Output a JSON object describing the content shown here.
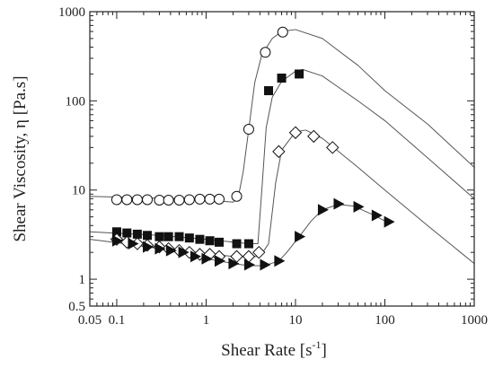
{
  "chart_data": {
    "type": "scatter",
    "title": "",
    "xlabel": {
      "main": "Shear Rate [s",
      "sup": "-1",
      "close": "]"
    },
    "ylabel": "Shear Viscosity, η [Pa.s]",
    "xscale": "log",
    "yscale": "log",
    "xlim": [
      0.05,
      1000
    ],
    "ylim": [
      0.5,
      1000
    ],
    "grid": false,
    "legend": "none",
    "x_ticks": [
      {
        "value": 0.05,
        "label": "0.05"
      },
      {
        "value": 0.1,
        "label": "0.1"
      },
      {
        "value": 1,
        "label": "1"
      },
      {
        "value": 10,
        "label": "10"
      },
      {
        "value": 100,
        "label": "100"
      },
      {
        "value": 1000,
        "label": "1000"
      }
    ],
    "y_ticks": [
      {
        "value": 0.5,
        "label": "0.5"
      },
      {
        "value": 1,
        "label": "1"
      },
      {
        "value": 10,
        "label": "10"
      },
      {
        "value": 100,
        "label": "100"
      },
      {
        "value": 1000,
        "label": "1000"
      }
    ],
    "colors": {
      "curve": "#555555",
      "marker": "#111111",
      "axis": "#222222"
    },
    "series": [
      {
        "marker": "open-circle",
        "points": [
          [
            0.1,
            7.8
          ],
          [
            0.13,
            7.8
          ],
          [
            0.17,
            7.8
          ],
          [
            0.22,
            7.8
          ],
          [
            0.3,
            7.7
          ],
          [
            0.38,
            7.7
          ],
          [
            0.5,
            7.7
          ],
          [
            0.65,
            7.8
          ],
          [
            0.85,
            7.9
          ],
          [
            1.1,
            7.9
          ],
          [
            1.4,
            7.9
          ],
          [
            2.2,
            8.5
          ],
          [
            3.0,
            48
          ],
          [
            4.6,
            350
          ],
          [
            7.2,
            590
          ]
        ],
        "curve": [
          [
            0.05,
            8.5
          ],
          [
            0.5,
            8.0
          ],
          [
            1.5,
            7.5
          ],
          [
            2.0,
            7.3
          ],
          [
            2.3,
            8.5
          ],
          [
            2.6,
            16
          ],
          [
            3.0,
            48
          ],
          [
            3.5,
            160
          ],
          [
            4.2,
            330
          ],
          [
            5.5,
            500
          ],
          [
            7.0,
            600
          ],
          [
            10,
            630
          ],
          [
            20,
            500
          ],
          [
            50,
            250
          ],
          [
            100,
            130
          ],
          [
            300,
            55
          ],
          [
            1000,
            18
          ]
        ]
      },
      {
        "marker": "filled-square",
        "points": [
          [
            0.1,
            3.4
          ],
          [
            0.13,
            3.3
          ],
          [
            0.17,
            3.2
          ],
          [
            0.22,
            3.1
          ],
          [
            0.3,
            3.0
          ],
          [
            0.38,
            3.0
          ],
          [
            0.5,
            3.0
          ],
          [
            0.65,
            2.9
          ],
          [
            0.85,
            2.8
          ],
          [
            1.1,
            2.7
          ],
          [
            1.4,
            2.6
          ],
          [
            2.2,
            2.5
          ],
          [
            3.0,
            2.5
          ],
          [
            5.0,
            130
          ],
          [
            7.0,
            180
          ],
          [
            11,
            200
          ]
        ],
        "curve": [
          [
            0.05,
            3.4
          ],
          [
            0.3,
            3.1
          ],
          [
            1,
            2.8
          ],
          [
            3,
            2.5
          ],
          [
            3.8,
            2.5
          ],
          [
            4.2,
            10
          ],
          [
            4.7,
            50
          ],
          [
            5.5,
            110
          ],
          [
            7,
            165
          ],
          [
            10,
            215
          ],
          [
            12,
            225
          ],
          [
            20,
            190
          ],
          [
            50,
            100
          ],
          [
            100,
            60
          ],
          [
            300,
            23
          ],
          [
            1000,
            8
          ]
        ]
      },
      {
        "marker": "open-diamond",
        "points": [
          [
            0.1,
            2.8
          ],
          [
            0.13,
            2.6
          ],
          [
            0.17,
            2.5
          ],
          [
            0.22,
            2.4
          ],
          [
            0.3,
            2.3
          ],
          [
            0.38,
            2.2
          ],
          [
            0.5,
            2.1
          ],
          [
            0.65,
            2.0
          ],
          [
            0.85,
            1.9
          ],
          [
            1.1,
            1.9
          ],
          [
            1.4,
            1.8
          ],
          [
            2.2,
            1.8
          ],
          [
            3.0,
            1.8
          ],
          [
            3.9,
            2.0
          ],
          [
            6.5,
            27
          ],
          [
            10,
            44
          ],
          [
            16,
            40
          ],
          [
            26,
            30
          ]
        ],
        "curve": [
          [
            0.05,
            2.8
          ],
          [
            0.5,
            2.1
          ],
          [
            2,
            1.8
          ],
          [
            4,
            1.8
          ],
          [
            5,
            2.5
          ],
          [
            6,
            12
          ],
          [
            7,
            28
          ],
          [
            10,
            45
          ],
          [
            13,
            47
          ],
          [
            20,
            38
          ],
          [
            50,
            18
          ],
          [
            100,
            10
          ],
          [
            300,
            4
          ],
          [
            1000,
            1.5
          ]
        ]
      },
      {
        "marker": "filled-triangle-right",
        "points": [
          [
            0.1,
            2.7
          ],
          [
            0.15,
            2.5
          ],
          [
            0.22,
            2.3
          ],
          [
            0.3,
            2.2
          ],
          [
            0.4,
            2.1
          ],
          [
            0.55,
            2.0
          ],
          [
            0.75,
            1.8
          ],
          [
            1.0,
            1.7
          ],
          [
            1.4,
            1.6
          ],
          [
            2.0,
            1.5
          ],
          [
            3.0,
            1.45
          ],
          [
            4.5,
            1.45
          ],
          [
            6.5,
            1.6
          ],
          [
            11,
            3.0
          ],
          [
            20,
            6.0
          ],
          [
            30,
            7.0
          ],
          [
            50,
            6.5
          ],
          [
            80,
            5.2
          ],
          [
            110,
            4.4
          ]
        ],
        "curve": [
          [
            0.1,
            2.6
          ],
          [
            0.3,
            2.2
          ],
          [
            1,
            1.7
          ],
          [
            2,
            1.5
          ],
          [
            3,
            1.42
          ],
          [
            4.5,
            1.42
          ],
          [
            6.5,
            1.6
          ],
          [
            8,
            2.0
          ],
          [
            11,
            3.0
          ],
          [
            15,
            4.5
          ],
          [
            20,
            6.0
          ],
          [
            30,
            6.9
          ],
          [
            45,
            6.6
          ],
          [
            70,
            5.4
          ],
          [
            110,
            4.3
          ]
        ]
      }
    ]
  }
}
